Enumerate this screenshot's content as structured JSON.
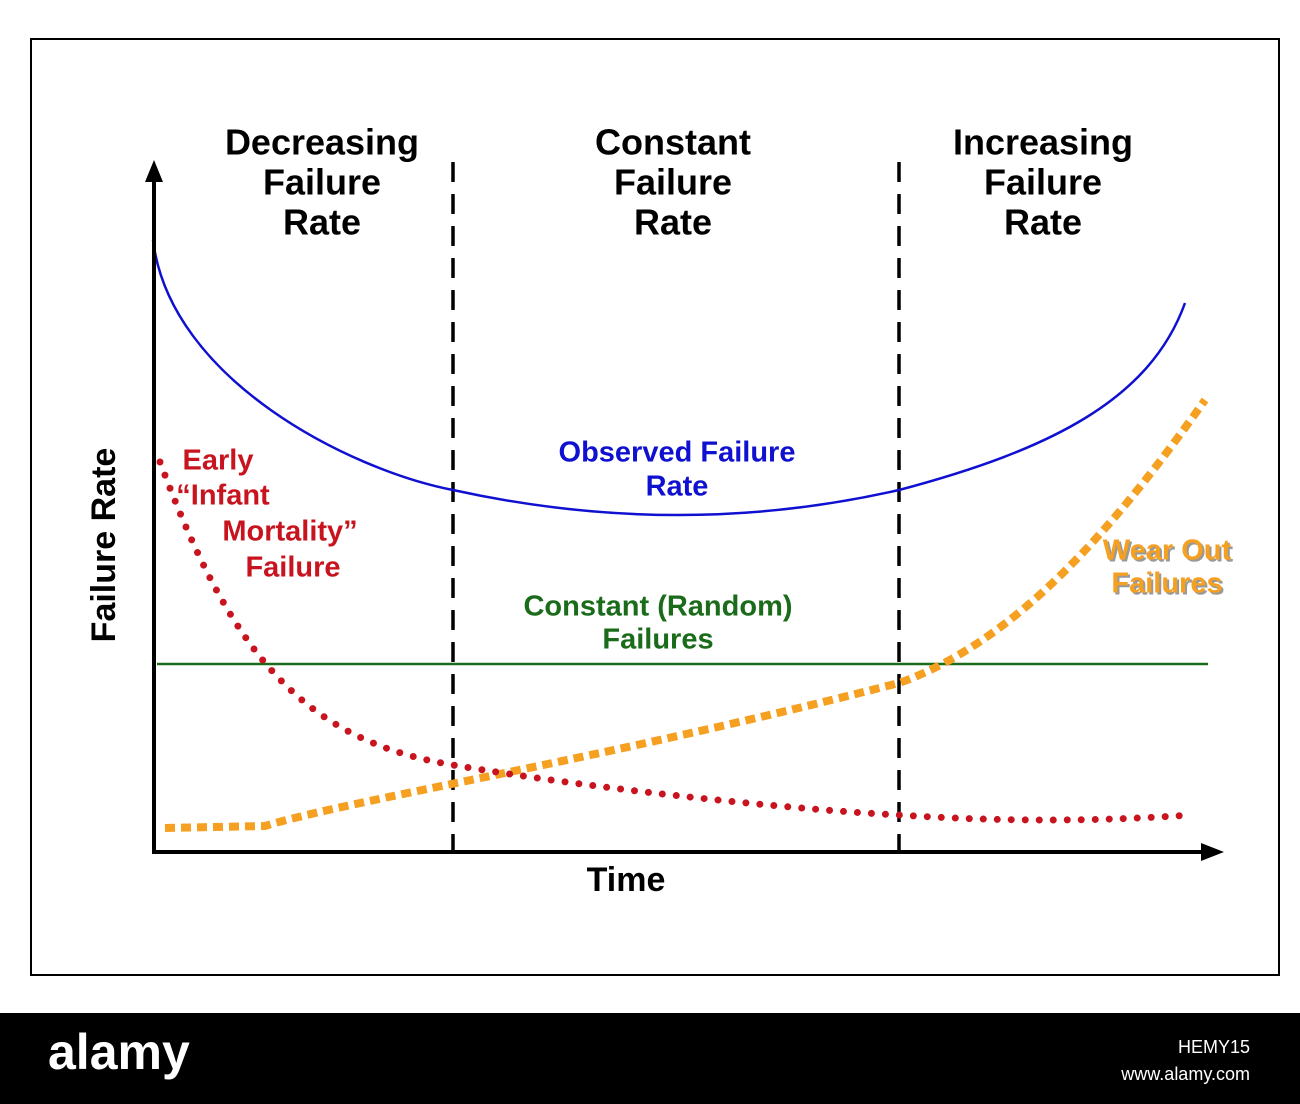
{
  "regions": [
    {
      "lines": [
        "Decreasing",
        "Failure",
        "Rate"
      ]
    },
    {
      "lines": [
        "Constant",
        "Failure",
        "Rate"
      ]
    },
    {
      "lines": [
        "Increasing",
        "Failure",
        "Rate"
      ]
    }
  ],
  "axes": {
    "y_label": "Failure Rate",
    "x_label": "Time"
  },
  "curves": {
    "observed": [
      "Observed Failure",
      "Rate"
    ],
    "infant": [
      "Early",
      "“Infant",
      "Mortality”",
      "Failure"
    ],
    "random": [
      "Constant (Random)",
      "Failures"
    ],
    "wearout": [
      "Wear Out",
      "Failures"
    ]
  },
  "footer": {
    "brand": "alamy",
    "image_id": "HEMY15",
    "url": "www.alamy.com"
  }
}
